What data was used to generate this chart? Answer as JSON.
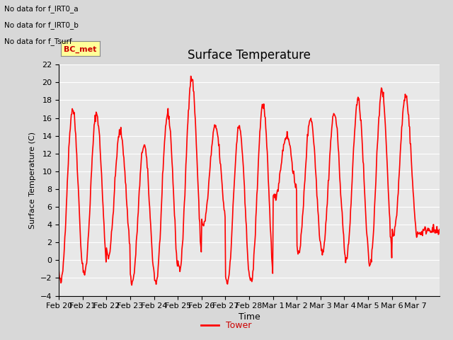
{
  "title": "Surface Temperature",
  "ylabel": "Surface Temperature (C)",
  "xlabel": "Time",
  "line_color": "#ff0000",
  "line_width": 1.2,
  "ylim": [
    -4,
    22
  ],
  "yticks": [
    -4,
    -2,
    0,
    2,
    4,
    6,
    8,
    10,
    12,
    14,
    16,
    18,
    20,
    22
  ],
  "background_color": "#d8d8d8",
  "plot_bg_color": "#e8e8e8",
  "legend_label": "Tower",
  "legend_text_color": "#cc0000",
  "annotations": [
    "No data for f_IRT0_a",
    "No data for f_IRT0_b",
    "No data for f_Tsurf"
  ],
  "annotation_box_label": "BC_met",
  "tick_labels": [
    "Feb 20",
    "Feb 21",
    "Feb 22",
    "Feb 23",
    "Feb 24",
    "Feb 25",
    "Feb 26",
    "Feb 27",
    "Feb 28",
    "Mar 1",
    "Mar 2",
    "Mar 3",
    "Mar 4",
    "Mar 5",
    "Mar 6",
    "Mar 7"
  ],
  "n_days": 16,
  "day_peaks": [
    17.0,
    16.5,
    14.5,
    13.0,
    16.5,
    20.5,
    15.0,
    15.0,
    17.5,
    14.0,
    16.0,
    16.5,
    18.0,
    19.0,
    18.5,
    3.5
  ],
  "day_mins": [
    -2.5,
    -1.5,
    0.5,
    -2.5,
    -2.5,
    -1.0,
    4.0,
    -2.5,
    -2.5,
    7.0,
    1.0,
    1.0,
    0.0,
    -0.5,
    3.0,
    3.0
  ]
}
